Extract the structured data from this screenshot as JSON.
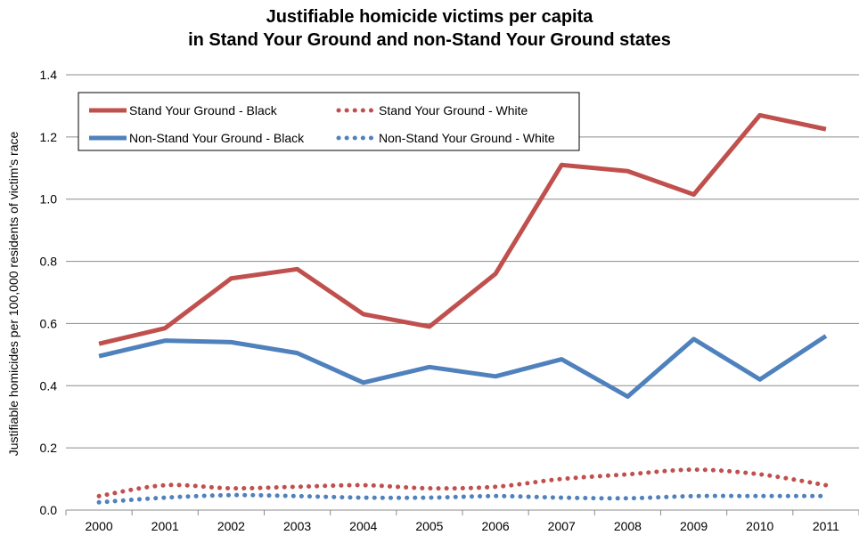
{
  "chart_data": {
    "type": "line",
    "title_line1": "Justifiable homicide victims per capita",
    "title_line2": "in Stand Your Ground and non-Stand Your Ground states",
    "ylabel": "Justifiable homicides per 100,000 residents of victim's race",
    "xlabel": "",
    "ylim": [
      0,
      1.4
    ],
    "y_ticks": [
      "0.0",
      "0.2",
      "0.4",
      "0.6",
      "0.8",
      "1.0",
      "1.2",
      "1.4"
    ],
    "grid": true,
    "legend_position": "top-left",
    "categories": [
      "2000",
      "2001",
      "2002",
      "2003",
      "2004",
      "2005",
      "2006",
      "2007",
      "2008",
      "2009",
      "2010",
      "2011"
    ],
    "series": [
      {
        "name": "Stand Your Ground - Black",
        "color": "#C0504D",
        "style": "solid",
        "values": [
          0.535,
          0.585,
          0.745,
          0.775,
          0.63,
          0.59,
          0.76,
          1.11,
          1.09,
          1.015,
          1.27,
          1.225
        ]
      },
      {
        "name": "Stand Your Ground - White",
        "color": "#C0504D",
        "style": "dotted",
        "values": [
          0.045,
          0.08,
          0.07,
          0.075,
          0.08,
          0.07,
          0.075,
          0.1,
          0.115,
          0.13,
          0.115,
          0.08
        ]
      },
      {
        "name": "Non-Stand Your Ground - Black",
        "color": "#4F81BD",
        "style": "solid",
        "values": [
          0.495,
          0.545,
          0.54,
          0.505,
          0.41,
          0.46,
          0.43,
          0.485,
          0.365,
          0.55,
          0.42,
          0.56
        ]
      },
      {
        "name": "Non-Stand Your Ground - White",
        "color": "#4F81BD",
        "style": "dotted",
        "values": [
          0.025,
          0.04,
          0.048,
          0.045,
          0.04,
          0.04,
          0.045,
          0.04,
          0.038,
          0.045,
          0.045,
          0.045
        ]
      }
    ]
  }
}
